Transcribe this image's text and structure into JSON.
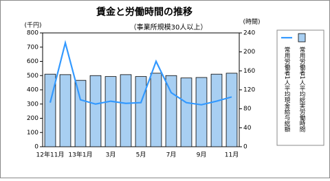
{
  "chart_data": {
    "type": "combo",
    "title": "賃金と労働時間の推移",
    "subtitle": "（事業所規模30人以上）",
    "y_label": "(千円)",
    "y2_label": "(時間)",
    "categories": [
      "12年11月",
      null,
      "13年1月",
      null,
      "3月",
      null,
      "5月",
      null,
      "7月",
      null,
      "9月",
      null,
      "11月"
    ],
    "series": [
      {
        "name": "常用労働者1人平均現金給与総額",
        "type": "line",
        "color": "#3399ff",
        "values": [
          310,
          730,
          330,
          300,
          320,
          305,
          310,
          600,
          380,
          310,
          295,
          320,
          350
        ]
      },
      {
        "name": "常用労働者1人平均総実労働時間",
        "type": "bar",
        "axis": "y2",
        "color": "#a8cff2",
        "values": [
          153,
          152,
          140,
          150,
          148,
          152,
          148,
          155,
          150,
          145,
          146,
          153,
          155
        ]
      }
    ],
    "ylim": [
      0,
      800
    ],
    "yticks": [
      0,
      100,
      200,
      300,
      400,
      500,
      600,
      700,
      800
    ],
    "y2lim": [
      0,
      240
    ],
    "y2ticks": [
      0,
      40,
      80,
      120,
      160,
      200,
      240
    ]
  }
}
